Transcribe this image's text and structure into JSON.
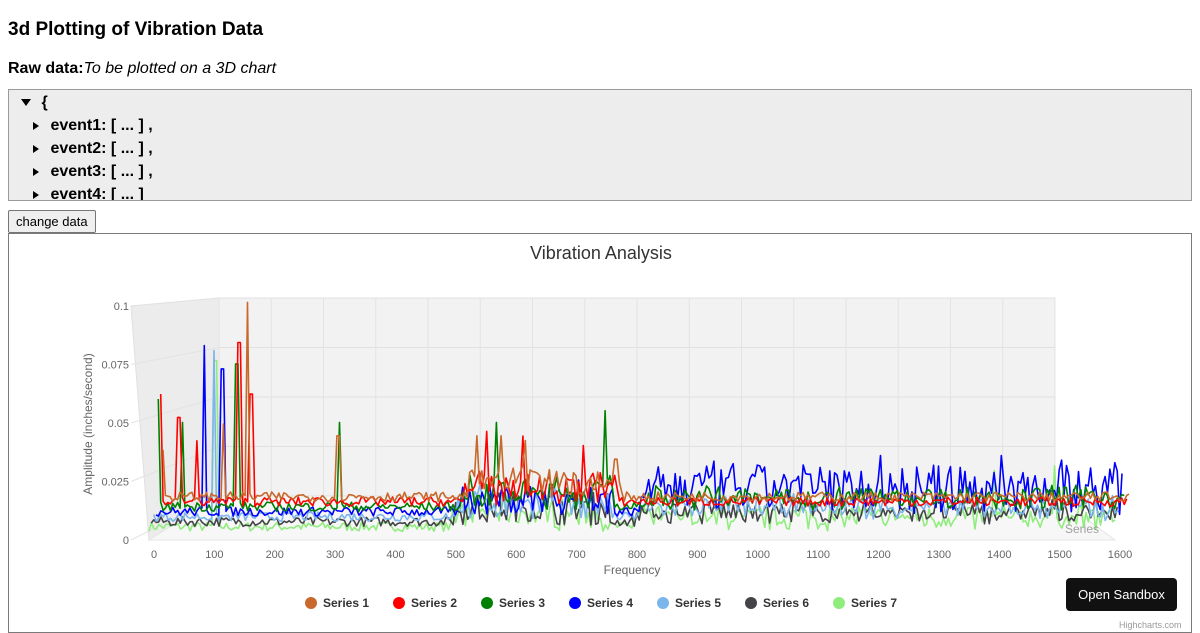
{
  "page": {
    "title": "3d Plotting of Vibration Data",
    "raw_label": "Raw data:",
    "raw_note": "To be plotted on a 3D chart"
  },
  "json_viewer": {
    "root": "{",
    "events": [
      "event1: [ ... ] ,",
      "event2: [ ... ] ,",
      "event3: [ ... ] ,",
      "event4: [ ... ]"
    ]
  },
  "buttons": {
    "change_data": "change data",
    "open_sandbox": "Open Sandbox"
  },
  "credits": "Highcharts.com",
  "chart_data": {
    "type": "line",
    "title": "Vibration Analysis",
    "xlabel": "Frequency",
    "ylabel": "Amplitude (inches/second)",
    "zlabel": "Series",
    "three_d": true,
    "xlim": [
      0,
      1600
    ],
    "ylim": [
      0,
      0.1
    ],
    "x_ticks": [
      0,
      100,
      200,
      300,
      400,
      500,
      600,
      700,
      800,
      900,
      1000,
      1100,
      1200,
      1300,
      1400,
      1500,
      1600
    ],
    "y_ticks": [
      0,
      0.025,
      0.05,
      0.075,
      0.1
    ],
    "y_tick_labels": [
      "0",
      "0.025",
      "0.05",
      "0.075",
      "0.1"
    ],
    "legend_position": "bottom-center",
    "series": [
      {
        "name": "Series 1",
        "color": "#c8682b",
        "x_max": 1600,
        "peaks": [
          [
            0,
            0.024
          ],
          [
            100,
            0.035
          ],
          [
            140,
            0.087
          ],
          [
            290,
            0.03
          ],
          [
            520,
            0.03
          ],
          [
            560,
            0.03
          ],
          [
            600,
            0.028
          ],
          [
            750,
            0.02
          ]
        ]
      },
      {
        "name": "Series 2",
        "color": "#ff0000",
        "x_max": 1600,
        "peaks": [
          [
            0,
            0.05
          ],
          [
            30,
            0.04
          ],
          [
            60,
            0.03
          ],
          [
            130,
            0.072
          ],
          [
            150,
            0.05
          ],
          [
            540,
            0.034
          ],
          [
            600,
            0.032
          ],
          [
            700,
            0.028
          ]
        ]
      },
      {
        "name": "Series 3",
        "color": "#008000",
        "x_max": 1600,
        "peaks": [
          [
            0,
            0.05
          ],
          [
            40,
            0.04
          ],
          [
            130,
            0.065
          ],
          [
            300,
            0.04
          ],
          [
            560,
            0.04
          ],
          [
            740,
            0.045
          ]
        ]
      },
      {
        "name": "Series 4",
        "color": "#0000ff",
        "x_max": 1600,
        "peaks": [
          [
            80,
            0.075
          ],
          [
            110,
            0.065
          ],
          [
            700,
            0.012
          ],
          [
            1200,
            0.028
          ],
          [
            1400,
            0.028
          ],
          [
            1500,
            0.026
          ]
        ]
      },
      {
        "name": "Series 5",
        "color": "#7cb5ec",
        "x_max": 1600,
        "peaks": [
          [
            100,
            0.075
          ],
          [
            1000,
            0.014
          ]
        ]
      },
      {
        "name": "Series 6",
        "color": "#434348",
        "x_max": 1600,
        "peaks": [
          [
            900,
            0.012
          ],
          [
            1300,
            0.014
          ]
        ]
      },
      {
        "name": "Series 7",
        "color": "#90ed7d",
        "x_max": 1600,
        "peaks": [
          [
            110,
            0.075
          ],
          [
            1400,
            0.028
          ],
          [
            1500,
            0.03
          ]
        ]
      }
    ]
  }
}
